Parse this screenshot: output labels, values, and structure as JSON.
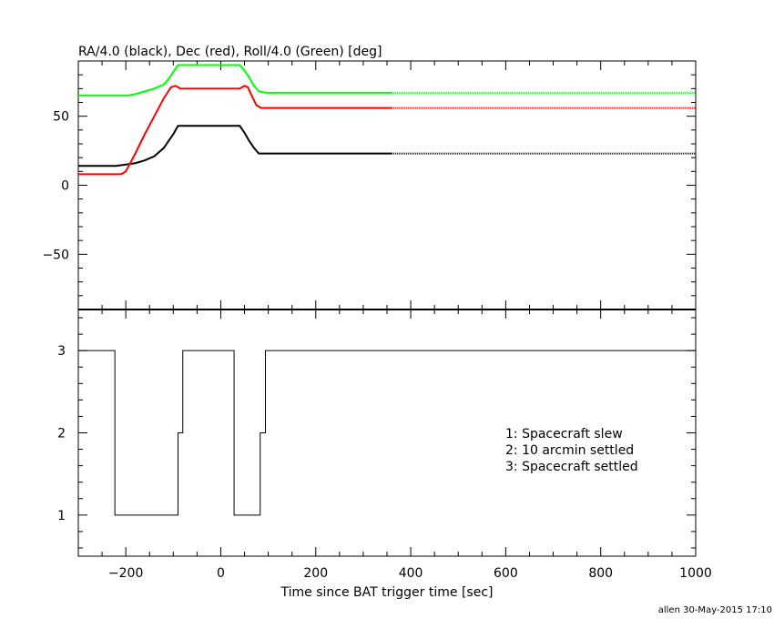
{
  "chart_data": [
    {
      "type": "line",
      "title": "RA/4.0 (black), Dec (red), Roll/4.0 (Green) [deg]",
      "xlim": [
        -300,
        1000
      ],
      "ylim": [
        -90,
        90
      ],
      "yticks": [
        {
          "v": 50,
          "label": "50"
        },
        {
          "v": 0,
          "label": "0"
        },
        {
          "v": -50,
          "label": "-50"
        }
      ],
      "grid": false,
      "series": [
        {
          "color": "#000000",
          "x": [
            -300,
            -220,
            -200,
            -180,
            -160,
            -140,
            -120,
            -110,
            -100,
            -90,
            0,
            40,
            50,
            60,
            70,
            80,
            100,
            360
          ],
          "y": [
            14,
            14,
            15,
            16,
            18,
            21,
            27,
            32,
            37,
            43,
            43,
            43,
            38,
            32,
            27,
            23,
            23,
            23
          ],
          "dotted_x": [
            360,
            1000
          ],
          "dotted_y": [
            23,
            23
          ]
        },
        {
          "color": "#ff0000",
          "x": [
            -300,
            -210,
            -200,
            -180,
            -160,
            -140,
            -120,
            -105,
            -95,
            -85,
            0,
            40,
            50,
            57,
            65,
            75,
            85,
            360
          ],
          "y": [
            8,
            8,
            10,
            23,
            37,
            50,
            63,
            71,
            72,
            70,
            70,
            70,
            72,
            71,
            65,
            58,
            56,
            56
          ],
          "dotted_x": [
            360,
            1000
          ],
          "dotted_y": [
            56,
            56
          ]
        },
        {
          "color": "#00ff00",
          "x": [
            -300,
            -195,
            -180,
            -160,
            -140,
            -120,
            -110,
            -100,
            -90,
            40,
            50,
            60,
            70,
            80,
            95,
            360
          ],
          "y": [
            65,
            65,
            66,
            68,
            70,
            73,
            77,
            82,
            87,
            87,
            83,
            78,
            72,
            68,
            67,
            67
          ],
          "dotted_x": [
            360,
            1000
          ],
          "dotted_y": [
            67,
            67
          ]
        }
      ]
    },
    {
      "type": "line",
      "xlabel": "Time since BAT trigger time [sec]",
      "xlim": [
        -300,
        1000
      ],
      "xticks": [
        {
          "v": -200,
          "label": "-200"
        },
        {
          "v": 0,
          "label": "0"
        },
        {
          "v": 200,
          "label": "200"
        },
        {
          "v": 400,
          "label": "400"
        },
        {
          "v": 600,
          "label": "600"
        },
        {
          "v": 800,
          "label": "800"
        },
        {
          "v": 1000,
          "label": "1000"
        }
      ],
      "ylim": [
        0.5,
        3.5
      ],
      "yticks": [
        {
          "v": 3,
          "label": "3"
        },
        {
          "v": 2,
          "label": "2"
        },
        {
          "v": 1,
          "label": "1"
        }
      ],
      "grid": false,
      "series": [
        {
          "color": "#000000",
          "step_x": [
            -300,
            -223,
            -223,
            -90,
            -90,
            -80,
            -80,
            28,
            28,
            83,
            83,
            94,
            94,
            1000
          ],
          "step_y": [
            3,
            3,
            1,
            1,
            2,
            2,
            3,
            3,
            1,
            1,
            2,
            2,
            3,
            3
          ]
        }
      ],
      "annotations": [
        "1: Spacecraft slew",
        "2: 10 arcmin settled",
        "3: Spacecraft settled"
      ]
    }
  ],
  "footer": {
    "credit": "allen 30-May-2015 17:10"
  }
}
